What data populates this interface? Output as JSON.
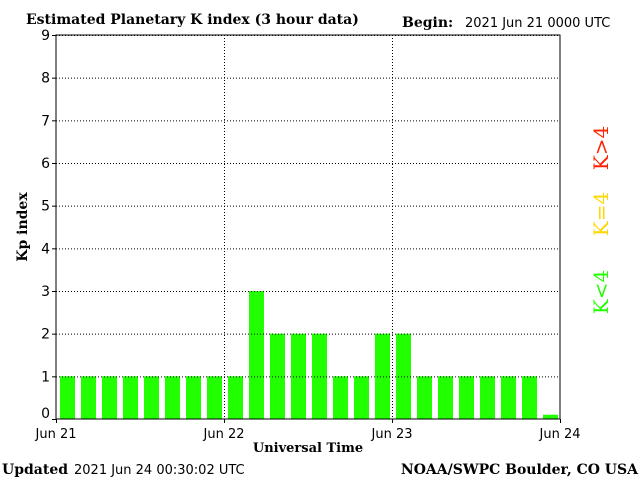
{
  "chart_data": {
    "type": "bar",
    "title": "Estimated Planetary K index (3 hour data)",
    "begin_label": "Begin:",
    "begin_value": "2021 Jun 21 0000 UTC",
    "xlabel": "Universal Time",
    "ylabel": "Kp index",
    "ylim": [
      0,
      9
    ],
    "yticks": [
      "0",
      "1",
      "2",
      "3",
      "4",
      "5",
      "6",
      "7",
      "8",
      "9"
    ],
    "xticks": [
      "Jun 21",
      "Jun 22",
      "Jun 23",
      "Jun 24"
    ],
    "values": [
      1,
      1,
      1,
      1,
      1,
      1,
      1,
      1,
      1,
      3,
      2,
      2,
      2,
      1,
      1,
      2,
      2,
      1,
      1,
      1,
      1,
      1,
      1,
      0.1
    ],
    "grid": true,
    "legend": [
      {
        "label": "K<4",
        "color": "#22ff00"
      },
      {
        "label": "K=4",
        "color": "#ffd700"
      },
      {
        "label": "K>4",
        "color": "#ff2200"
      }
    ]
  },
  "footer": {
    "updated_label": "Updated",
    "updated_value": "2021 Jun 24 00:30:02 UTC",
    "credit": "NOAA/SWPC Boulder, CO USA"
  },
  "colors": {
    "low": "#22ff00",
    "mid": "#ffd700",
    "high": "#ff2200"
  }
}
